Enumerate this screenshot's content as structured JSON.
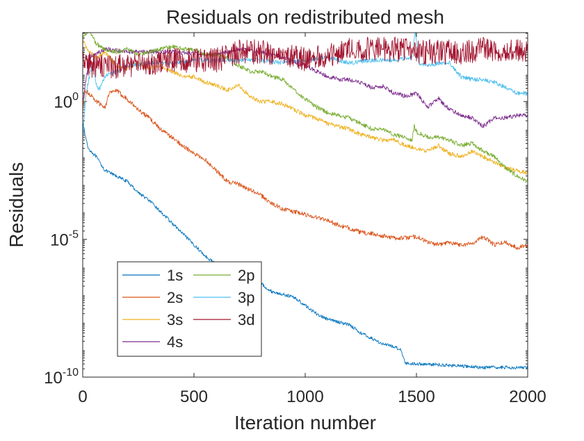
{
  "chart_data": {
    "type": "line",
    "title": "Residuals on redistributed mesh",
    "xlabel": "Iteration number",
    "ylabel": "Residuals",
    "xlim": [
      0,
      2000
    ],
    "ylim_log10": [
      -10,
      2.5
    ],
    "yscale": "log",
    "x_ticks": [
      {
        "value": 0,
        "label": "0"
      },
      {
        "value": 500,
        "label": "500"
      },
      {
        "value": 1000,
        "label": "1000"
      },
      {
        "value": 1500,
        "label": "1500"
      },
      {
        "value": 2000,
        "label": "2000"
      }
    ],
    "y_ticks": [
      {
        "value": -10,
        "base": "10",
        "exp": "-10"
      },
      {
        "value": -5,
        "base": "10",
        "exp": "-5"
      },
      {
        "value": 0,
        "base": "10",
        "exp": "0"
      }
    ],
    "legend_position": "bottom-left",
    "series": [
      {
        "name": "1s",
        "color": "#0072BD",
        "noise": 0.06,
        "points": [
          [
            0,
            -0.7
          ],
          [
            10,
            -1.2
          ],
          [
            25,
            -1.7
          ],
          [
            60,
            -2.0
          ],
          [
            100,
            -2.5
          ],
          [
            150,
            -2.7
          ],
          [
            200,
            -2.9
          ],
          [
            250,
            -3.3
          ],
          [
            300,
            -3.6
          ],
          [
            400,
            -4.4
          ],
          [
            500,
            -5.2
          ],
          [
            550,
            -5.6
          ],
          [
            600,
            -5.9
          ],
          [
            650,
            -6.0
          ],
          [
            700,
            -6.2
          ],
          [
            750,
            -6.4
          ],
          [
            800,
            -6.6
          ],
          [
            850,
            -6.9
          ],
          [
            900,
            -7.0
          ],
          [
            950,
            -7.1
          ],
          [
            1000,
            -7.4
          ],
          [
            1050,
            -7.7
          ],
          [
            1100,
            -7.9
          ],
          [
            1150,
            -8.0
          ],
          [
            1200,
            -8.1
          ],
          [
            1250,
            -8.4
          ],
          [
            1300,
            -8.6
          ],
          [
            1350,
            -8.8
          ],
          [
            1400,
            -8.9
          ],
          [
            1430,
            -9.0
          ],
          [
            1450,
            -9.5
          ],
          [
            1600,
            -9.55
          ],
          [
            1800,
            -9.65
          ],
          [
            2000,
            -9.65
          ]
        ]
      },
      {
        "name": "2s",
        "color": "#D95319",
        "noise": 0.08,
        "points": [
          [
            0,
            -0.3
          ],
          [
            10,
            0.4
          ],
          [
            40,
            0.2
          ],
          [
            60,
            0.0
          ],
          [
            100,
            -0.2
          ],
          [
            120,
            0.3
          ],
          [
            150,
            0.4
          ],
          [
            200,
            0.1
          ],
          [
            250,
            -0.3
          ],
          [
            300,
            -0.6
          ],
          [
            350,
            -1.0
          ],
          [
            400,
            -1.3
          ],
          [
            450,
            -1.6
          ],
          [
            500,
            -1.9
          ],
          [
            550,
            -2.1
          ],
          [
            600,
            -2.5
          ],
          [
            650,
            -2.9
          ],
          [
            700,
            -3.0
          ],
          [
            750,
            -3.2
          ],
          [
            800,
            -3.4
          ],
          [
            850,
            -3.7
          ],
          [
            900,
            -3.9
          ],
          [
            950,
            -4.0
          ],
          [
            1000,
            -4.1
          ],
          [
            1050,
            -4.2
          ],
          [
            1100,
            -4.3
          ],
          [
            1150,
            -4.5
          ],
          [
            1200,
            -4.6
          ],
          [
            1250,
            -4.75
          ],
          [
            1300,
            -4.8
          ],
          [
            1400,
            -4.95
          ],
          [
            1450,
            -4.95
          ],
          [
            1500,
            -4.9
          ],
          [
            1550,
            -5.1
          ],
          [
            1600,
            -5.2
          ],
          [
            1650,
            -5.1
          ],
          [
            1700,
            -5.2
          ],
          [
            1750,
            -5.15
          ],
          [
            1800,
            -4.9
          ],
          [
            1850,
            -5.2
          ],
          [
            1900,
            -5.1
          ],
          [
            1950,
            -5.3
          ],
          [
            2000,
            -5.2
          ]
        ]
      },
      {
        "name": "3s",
        "color": "#EDB120",
        "noise": 0.08,
        "points": [
          [
            0,
            2.2
          ],
          [
            20,
            1.9
          ],
          [
            60,
            1.6
          ],
          [
            100,
            1.8
          ],
          [
            150,
            1.3
          ],
          [
            200,
            1.2
          ],
          [
            250,
            1.4
          ],
          [
            300,
            1.2
          ],
          [
            350,
            1.3
          ],
          [
            400,
            1.1
          ],
          [
            450,
            0.9
          ],
          [
            500,
            0.9
          ],
          [
            550,
            0.7
          ],
          [
            600,
            0.6
          ],
          [
            650,
            0.4
          ],
          [
            700,
            0.6
          ],
          [
            750,
            0.2
          ],
          [
            800,
            0.0
          ],
          [
            850,
            0.0
          ],
          [
            900,
            -0.1
          ],
          [
            950,
            -0.3
          ],
          [
            1000,
            -0.5
          ],
          [
            1050,
            -0.6
          ],
          [
            1100,
            -0.8
          ],
          [
            1150,
            -0.9
          ],
          [
            1200,
            -1.0
          ],
          [
            1250,
            -1.2
          ],
          [
            1300,
            -1.3
          ],
          [
            1350,
            -1.4
          ],
          [
            1400,
            -1.4
          ],
          [
            1450,
            -1.6
          ],
          [
            1500,
            -1.7
          ],
          [
            1550,
            -1.8
          ],
          [
            1600,
            -1.6
          ],
          [
            1650,
            -1.9
          ],
          [
            1700,
            -2.0
          ],
          [
            1750,
            -1.8
          ],
          [
            1800,
            -2.0
          ],
          [
            1850,
            -2.2
          ],
          [
            1900,
            -2.4
          ],
          [
            1950,
            -2.5
          ],
          [
            2000,
            -2.6
          ]
        ]
      },
      {
        "name": "4s",
        "color": "#7E2F8E",
        "noise": 0.08,
        "points": [
          [
            0,
            0.0
          ],
          [
            30,
            1.6
          ],
          [
            100,
            1.9
          ],
          [
            200,
            1.8
          ],
          [
            300,
            1.8
          ],
          [
            400,
            1.8
          ],
          [
            500,
            1.75
          ],
          [
            600,
            1.7
          ],
          [
            700,
            1.9
          ],
          [
            800,
            1.8
          ],
          [
            900,
            1.6
          ],
          [
            1000,
            1.3
          ],
          [
            1050,
            1.1
          ],
          [
            1100,
            0.9
          ],
          [
            1150,
            0.8
          ],
          [
            1200,
            0.8
          ],
          [
            1250,
            0.7
          ],
          [
            1300,
            0.5
          ],
          [
            1350,
            0.55
          ],
          [
            1400,
            0.3
          ],
          [
            1450,
            0.2
          ],
          [
            1500,
            0.3
          ],
          [
            1550,
            -0.2
          ],
          [
            1600,
            0.1
          ],
          [
            1650,
            -0.3
          ],
          [
            1700,
            -0.5
          ],
          [
            1750,
            -0.6
          ],
          [
            1800,
            -0.9
          ],
          [
            1850,
            -0.6
          ],
          [
            1900,
            -0.6
          ],
          [
            1950,
            -0.5
          ],
          [
            2000,
            -0.5
          ]
        ]
      },
      {
        "name": "2p",
        "color": "#77AC30",
        "noise": 0.08,
        "points": [
          [
            0,
            2.3
          ],
          [
            30,
            2.6
          ],
          [
            60,
            2.1
          ],
          [
            100,
            1.9
          ],
          [
            150,
            1.8
          ],
          [
            200,
            1.9
          ],
          [
            250,
            1.7
          ],
          [
            300,
            1.8
          ],
          [
            350,
            1.9
          ],
          [
            400,
            2.0
          ],
          [
            450,
            1.9
          ],
          [
            500,
            1.9
          ],
          [
            550,
            1.7
          ],
          [
            600,
            1.7
          ],
          [
            650,
            1.6
          ],
          [
            700,
            1.3
          ],
          [
            750,
            1.1
          ],
          [
            800,
            1.1
          ],
          [
            850,
            0.9
          ],
          [
            900,
            0.8
          ],
          [
            950,
            0.4
          ],
          [
            1000,
            0.1
          ],
          [
            1050,
            -0.2
          ],
          [
            1100,
            -0.4
          ],
          [
            1150,
            -0.5
          ],
          [
            1200,
            -0.6
          ],
          [
            1250,
            -0.8
          ],
          [
            1300,
            -1.0
          ],
          [
            1350,
            -1.0
          ],
          [
            1400,
            -1.2
          ],
          [
            1450,
            -1.3
          ],
          [
            1480,
            -1.4
          ],
          [
            1490,
            -0.9
          ],
          [
            1500,
            -1.1
          ],
          [
            1550,
            -1.3
          ],
          [
            1600,
            -1.3
          ],
          [
            1650,
            -1.4
          ],
          [
            1700,
            -1.6
          ],
          [
            1750,
            -1.5
          ],
          [
            1800,
            -1.8
          ],
          [
            1850,
            -2.0
          ],
          [
            1900,
            -2.4
          ],
          [
            1950,
            -2.7
          ],
          [
            2000,
            -2.9
          ]
        ]
      },
      {
        "name": "3p",
        "color": "#4DBEEE",
        "noise": 0.08,
        "points": [
          [
            0,
            -1.3
          ],
          [
            15,
            0.3
          ],
          [
            40,
            1.3
          ],
          [
            70,
            0.4
          ],
          [
            100,
            0.9
          ],
          [
            150,
            1.1
          ],
          [
            200,
            1.3
          ],
          [
            300,
            1.4
          ],
          [
            400,
            1.4
          ],
          [
            500,
            1.5
          ],
          [
            600,
            1.5
          ],
          [
            700,
            1.5
          ],
          [
            800,
            1.5
          ],
          [
            900,
            1.4
          ],
          [
            1000,
            1.5
          ],
          [
            1100,
            1.6
          ],
          [
            1200,
            1.4
          ],
          [
            1300,
            1.5
          ],
          [
            1400,
            1.5
          ],
          [
            1480,
            1.6
          ],
          [
            1495,
            2.6
          ],
          [
            1510,
            1.4
          ],
          [
            1550,
            1.3
          ],
          [
            1600,
            1.4
          ],
          [
            1650,
            1.4
          ],
          [
            1700,
            0.9
          ],
          [
            1750,
            0.8
          ],
          [
            1800,
            0.8
          ],
          [
            1850,
            0.7
          ],
          [
            1900,
            0.5
          ],
          [
            1950,
            0.3
          ],
          [
            2000,
            0.3
          ]
        ]
      },
      {
        "name": "3d",
        "color": "#A2142F",
        "noise": 0.45,
        "points": [
          [
            0,
            1.4
          ],
          [
            100,
            1.2
          ],
          [
            200,
            1.3
          ],
          [
            300,
            1.4
          ],
          [
            400,
            1.5
          ],
          [
            500,
            1.5
          ],
          [
            600,
            1.5
          ],
          [
            700,
            1.8
          ],
          [
            800,
            1.8
          ],
          [
            900,
            1.7
          ],
          [
            1000,
            1.5
          ],
          [
            1100,
            1.7
          ],
          [
            1200,
            1.9
          ],
          [
            1300,
            1.9
          ],
          [
            1400,
            1.9
          ],
          [
            1500,
            1.8
          ],
          [
            1600,
            1.8
          ],
          [
            1700,
            1.8
          ],
          [
            1800,
            1.9
          ],
          [
            1900,
            1.9
          ],
          [
            2000,
            1.8
          ]
        ]
      }
    ]
  }
}
